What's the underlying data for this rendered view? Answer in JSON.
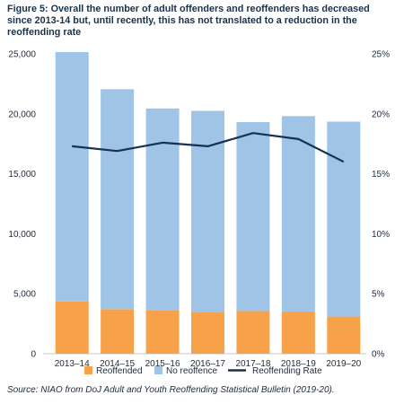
{
  "title": "Figure 5: Overall the number of adult offenders and reoffenders has decreased since 2013-14 but, until recently, this has not translated to a reduction in the reoffending rate",
  "source": "Source: NIAO from DoJ Adult and Youth Reoffending Statistical Bulletin (2019-20).",
  "legend": {
    "reoffended": "Reoffended",
    "no_reoffence": "No reoffence",
    "rate": "Reoffending Rate"
  },
  "colors": {
    "reoffended": "#f7a24a",
    "no_reoffence": "#9fc4e6",
    "rate": "#17324f",
    "grid": "#d9d9d9"
  },
  "chart_data": {
    "type": "bar",
    "stacked": true,
    "categories": [
      "2013–14",
      "2014–15",
      "2015–16",
      "2016–17",
      "2017–18",
      "2018–19",
      "2019–20"
    ],
    "series": [
      {
        "name": "Reoffended",
        "values": [
          4350,
          3720,
          3600,
          3500,
          3560,
          3530,
          3100
        ],
        "axis": "left"
      },
      {
        "name": "No reoffence",
        "values": [
          20800,
          18330,
          16850,
          16750,
          15750,
          16280,
          16250
        ],
        "axis": "left"
      },
      {
        "name": "Reoffending Rate",
        "type": "line",
        "values": [
          17.3,
          16.9,
          17.6,
          17.3,
          18.4,
          17.9,
          16.0
        ],
        "axis": "right"
      }
    ],
    "y_left": {
      "ylim": [
        0,
        25000
      ],
      "ticks": [
        0,
        5000,
        10000,
        15000,
        20000,
        25000
      ],
      "tick_labels": [
        "0",
        "5,000",
        "10,000",
        "15,000",
        "20,000",
        "25,000"
      ]
    },
    "y_right": {
      "ylim": [
        0,
        25
      ],
      "ticks": [
        0,
        5,
        10,
        15,
        20,
        25
      ],
      "tick_labels": [
        "0%",
        "5%",
        "10%",
        "15%",
        "20%",
        "25%"
      ]
    },
    "grid": false,
    "legend_position": "bottom"
  }
}
